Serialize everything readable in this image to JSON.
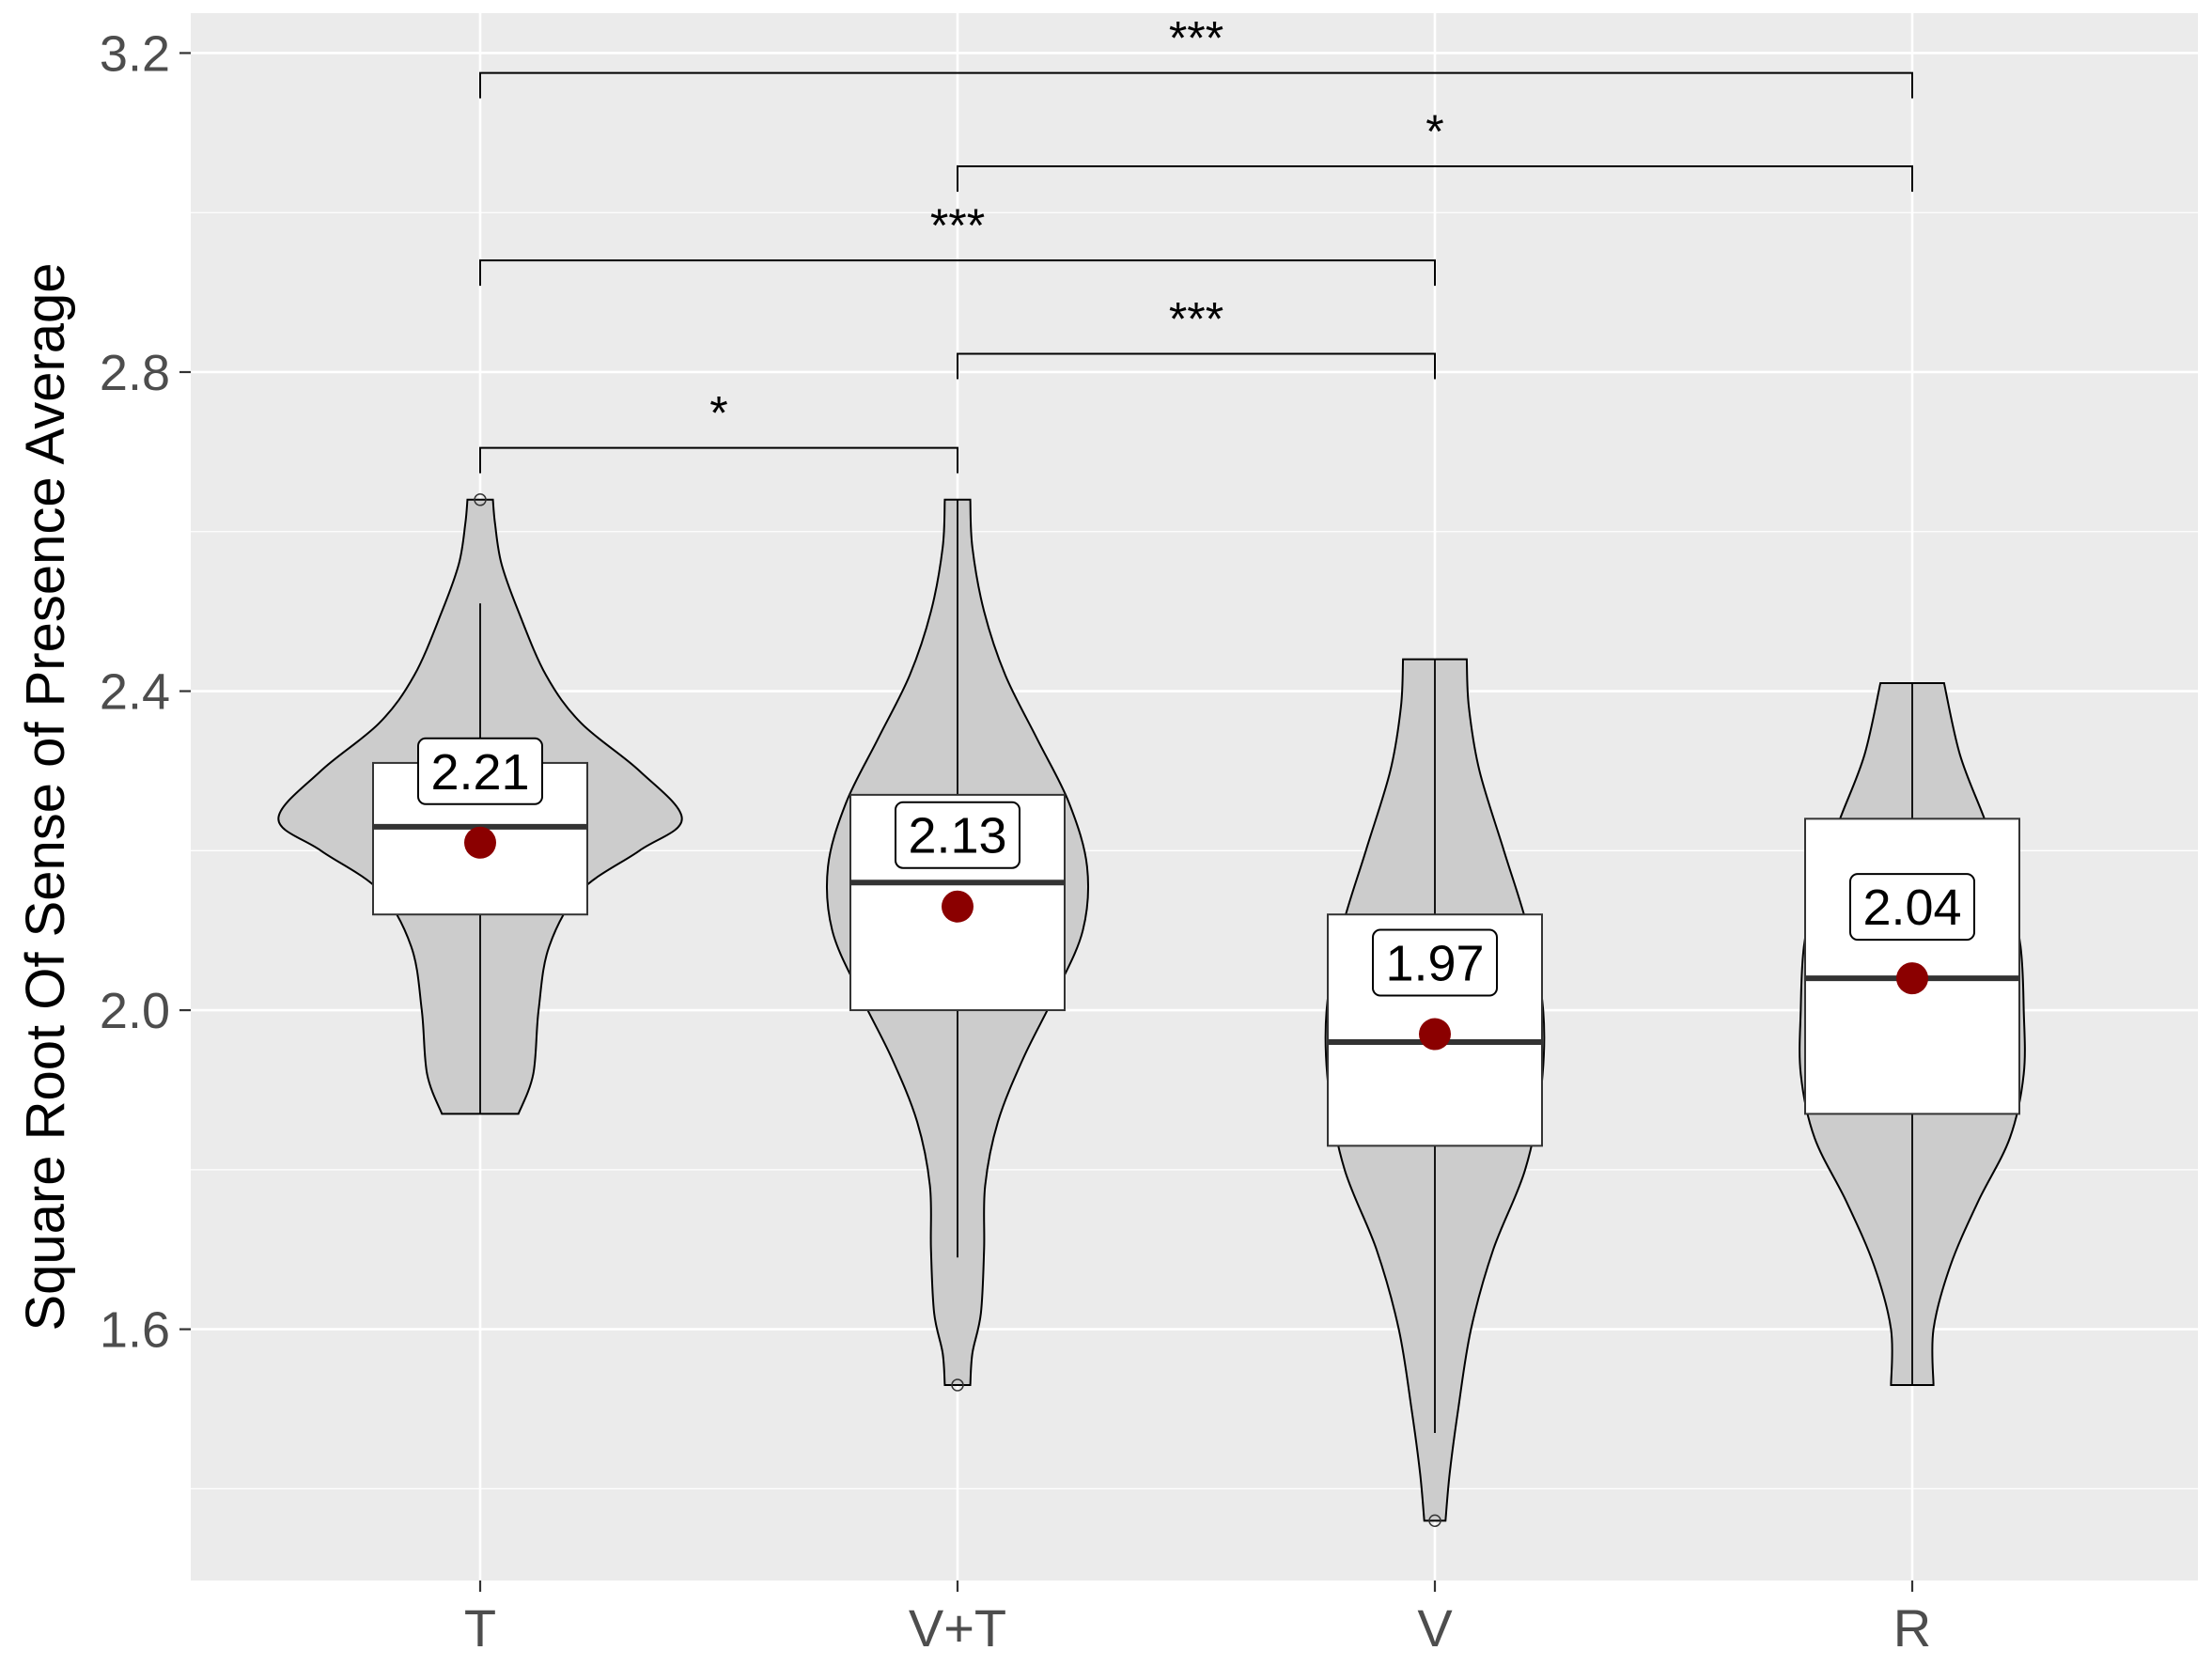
{
  "chart_data": {
    "type": "violin",
    "ylabel": "Square Root Of Sense of Presence Average",
    "xlabel": "",
    "categories": [
      "T",
      "V+T",
      "V",
      "R"
    ],
    "ylim": [
      1.285,
      3.25
    ],
    "yticks": [
      1.6,
      2.0,
      2.4,
      2.8,
      3.2
    ],
    "grid": true,
    "groups": [
      {
        "name": "T",
        "mean": 2.21,
        "mean_label": "2.21",
        "box": {
          "q1": 2.12,
          "median": 2.23,
          "q3": 2.31
        },
        "whisker": {
          "low": 1.87,
          "high": 2.51
        },
        "outliers": [
          2.64
        ],
        "violin": {
          "y": [
            1.87,
            1.92,
            2.0,
            2.08,
            2.15,
            2.2,
            2.24,
            2.3,
            2.36,
            2.42,
            2.5,
            2.56,
            2.61,
            2.64
          ],
          "w": [
            0.36,
            0.5,
            0.55,
            0.65,
            0.95,
            1.5,
            1.9,
            1.5,
            0.95,
            0.62,
            0.36,
            0.2,
            0.14,
            0.12
          ]
        }
      },
      {
        "name": "V+T",
        "mean": 2.13,
        "mean_label": "2.13",
        "box": {
          "q1": 2.0,
          "median": 2.16,
          "q3": 2.27
        },
        "whisker": {
          "low": 1.69,
          "high": 2.64
        },
        "outliers": [
          1.53
        ],
        "violin": {
          "y": [
            1.53,
            1.57,
            1.62,
            1.7,
            1.78,
            1.86,
            1.94,
            2.02,
            2.1,
            2.18,
            2.26,
            2.34,
            2.42,
            2.5,
            2.58,
            2.64
          ],
          "w": [
            0.12,
            0.14,
            0.22,
            0.25,
            0.26,
            0.38,
            0.62,
            0.92,
            1.18,
            1.22,
            1.05,
            0.75,
            0.45,
            0.25,
            0.14,
            0.12
          ]
        }
      },
      {
        "name": "V",
        "mean": 1.97,
        "mean_label": "1.97",
        "box": {
          "q1": 1.83,
          "median": 1.96,
          "q3": 2.12
        },
        "whisker": {
          "low": 1.47,
          "high": 2.44
        },
        "outliers": [
          1.36
        ],
        "violin": {
          "y": [
            1.36,
            1.42,
            1.5,
            1.6,
            1.7,
            1.8,
            1.9,
            2.0,
            2.1,
            2.2,
            2.3,
            2.38,
            2.44
          ],
          "w": [
            0.1,
            0.14,
            0.22,
            0.34,
            0.55,
            0.85,
            1.0,
            1.02,
            0.88,
            0.65,
            0.42,
            0.32,
            0.3
          ]
        }
      },
      {
        "name": "R",
        "mean": 2.04,
        "mean_label": "2.04",
        "box": {
          "q1": 1.87,
          "median": 2.04,
          "q3": 2.24
        },
        "whisker": {
          "low": 1.53,
          "high": 2.41
        },
        "outliers": [],
        "violin": {
          "y": [
            1.53,
            1.6,
            1.68,
            1.76,
            1.84,
            1.92,
            2.0,
            2.08,
            2.16,
            2.24,
            2.32,
            2.41
          ],
          "w": [
            0.2,
            0.2,
            0.36,
            0.62,
            0.92,
            1.05,
            1.05,
            1.02,
            0.9,
            0.68,
            0.45,
            0.3
          ]
        }
      }
    ],
    "significance": [
      {
        "from": "T",
        "to": "V+T",
        "label": "*",
        "y": 2.705
      },
      {
        "from": "V+T",
        "to": "V",
        "label": "***",
        "y": 2.823
      },
      {
        "from": "T",
        "to": "V",
        "label": "***",
        "y": 2.94
      },
      {
        "from": "V+T",
        "to": "R",
        "label": "*",
        "y": 3.058
      },
      {
        "from": "T",
        "to": "R",
        "label": "***",
        "y": 3.175
      }
    ],
    "colors": {
      "panel": "#ebebeb",
      "grid": "#ffffff",
      "violin_fill": "#cccccc",
      "box_fill": "#ffffff",
      "mean_point": "#8b0000",
      "line": "#000000",
      "median": "#333333"
    }
  }
}
